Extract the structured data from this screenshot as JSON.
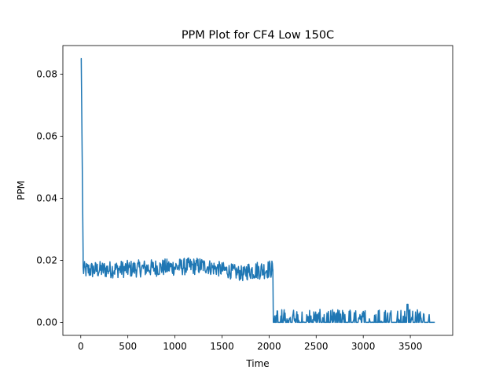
{
  "chart_data": {
    "type": "line",
    "title": "PPM Plot for CF4 Low 150C",
    "xlabel": "Time",
    "ylabel": "PPM",
    "xlim": [
      -190,
      3950
    ],
    "ylim": [
      -0.0042,
      0.0892
    ],
    "xticks": [
      0,
      500,
      1000,
      1500,
      2000,
      2500,
      3000,
      3500
    ],
    "yticks": [
      0.0,
      0.02,
      0.04,
      0.06,
      0.08
    ],
    "ytick_labels": [
      "0.00",
      "0.02",
      "0.04",
      "0.06",
      "0.08"
    ],
    "grid": false,
    "series": [
      {
        "color": "#1f77b4",
        "segments": [
          {
            "x_start": 0,
            "x_end": 5,
            "from": 0.085,
            "to": 0.085
          },
          {
            "x_start": 5,
            "x_end": 25,
            "from": 0.085,
            "to": 0.022
          },
          {
            "x_start": 25,
            "x_end": 500,
            "from": 0.0168,
            "to": 0.0172
          },
          {
            "x_start": 500,
            "x_end": 1300,
            "from": 0.0172,
            "to": 0.0182
          },
          {
            "x_start": 1300,
            "x_end": 1750,
            "from": 0.0182,
            "to": 0.0155
          },
          {
            "x_start": 1750,
            "x_end": 2040,
            "from": 0.0165,
            "to": 0.0172
          },
          {
            "x_start": 2040,
            "x_end": 2045,
            "from": 0.017,
            "to": 0.0
          },
          {
            "x_start": 2045,
            "x_end": 3760,
            "from": 0.0,
            "to": 0.0
          }
        ],
        "noise_amplitude": [
          0.0028,
          0.0028,
          0.0025,
          0.003,
          0.0,
          0.0
        ]
      }
    ]
  }
}
